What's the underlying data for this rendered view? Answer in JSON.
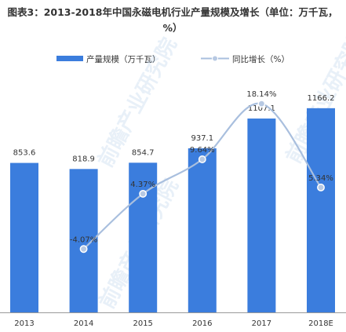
{
  "chart_data": {
    "type": "bar",
    "title": "图表3：2013-2018年中国永磁电机行业产量规模及增长（单位：万千瓦，%）",
    "categories": [
      "2013",
      "2014",
      "2015",
      "2016",
      "2017",
      "2018E"
    ],
    "series": [
      {
        "name": "产量规模（万千瓦）",
        "type": "bar",
        "color": "#3b7ddd",
        "values": [
          853.6,
          818.9,
          854.7,
          937.1,
          1107.1,
          1166.2
        ],
        "labels": [
          "853.6",
          "818.9",
          "854.7",
          "937.1",
          "1107.1",
          "1166.2"
        ]
      },
      {
        "name": "同比增长（%）",
        "type": "line",
        "color": "#a9bfde",
        "values": [
          null,
          -4.07,
          4.37,
          9.64,
          18.14,
          5.34
        ],
        "labels": [
          "",
          "-4.07%",
          "4.37%",
          "9.64%",
          "18.14%",
          "5.34%"
        ]
      }
    ],
    "bar_ylim": [
      0,
      1300
    ],
    "line_ylim": [
      -8,
      22
    ],
    "legend_position": "top",
    "grid": false,
    "watermark": "前瞻产业研究院"
  }
}
